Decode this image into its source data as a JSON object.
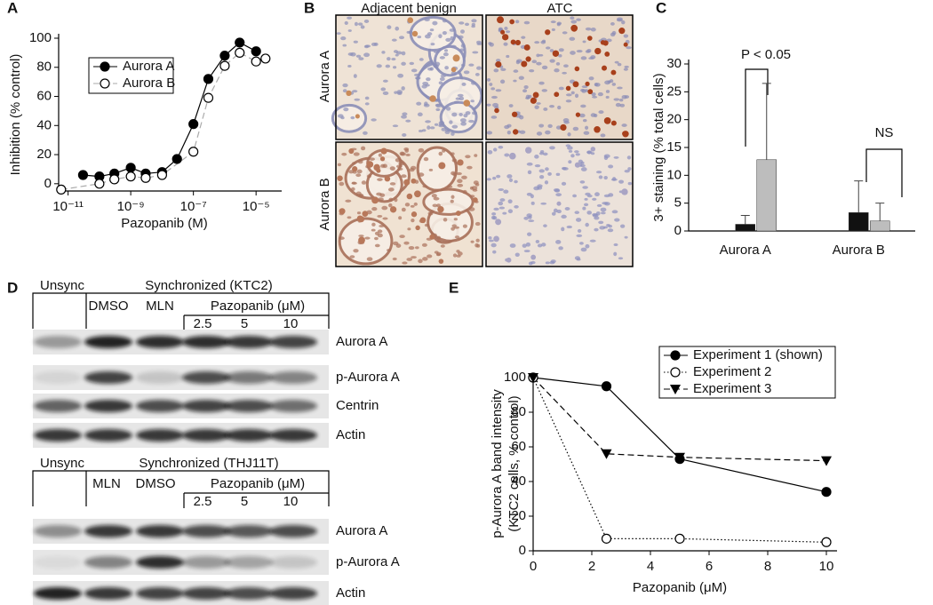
{
  "panel_labels": [
    "A",
    "B",
    "C",
    "D",
    "E"
  ],
  "chart_data": [
    {
      "type": "line",
      "xlabel": "Pazopanib (M)",
      "ylabel": [
        "Inhibition (% control)"
      ],
      "xscale": "log",
      "xlim": [
        5e-12,
        3e-05
      ],
      "xticks": [
        {
          "value": 1e-11,
          "label": "10⁻¹¹"
        },
        {
          "value": 1e-09,
          "label": "10⁻⁹"
        },
        {
          "value": 1e-07,
          "label": "10⁻⁷"
        },
        {
          "value": 1e-05,
          "label": "10⁻⁵"
        }
      ],
      "ylim": [
        -5,
        100
      ],
      "yticks": [
        0,
        20,
        40,
        60,
        80,
        100
      ],
      "legend": "upper left",
      "series": [
        {
          "name": "Aurora A",
          "color": "#000000",
          "marker": "circle-filled",
          "line_style": "solid",
          "x": [
            3e-11,
            1e-10,
            3e-10,
            1e-09,
            3e-09,
            1e-08,
            3e-08,
            1e-07,
            3e-07,
            1e-06,
            3e-06,
            1e-05
          ],
          "values": [
            6,
            5,
            7,
            11,
            7,
            8,
            17,
            41,
            72,
            88,
            97,
            91
          ]
        },
        {
          "name": "Aurora B",
          "color": "#aaaaaa",
          "marker": "circle-open",
          "line_style": "dashed",
          "x": [
            6e-12,
            1e-10,
            3e-10,
            1e-09,
            3e-09,
            1e-08,
            1e-07,
            3e-07,
            1e-06,
            3e-06,
            1e-05,
            2e-05
          ],
          "values": [
            -4,
            0,
            3,
            5,
            4,
            6,
            22,
            59,
            81,
            90,
            84,
            86
          ]
        }
      ]
    },
    {
      "type": "bar",
      "ylabel": [
        "3+ staining (% total cells)"
      ],
      "categories": [
        "Aurora A",
        "Aurora B"
      ],
      "ylim": [
        0,
        30
      ],
      "yticks": [
        0,
        5,
        10,
        15,
        20,
        25,
        30
      ],
      "annotations": [
        "P < 0.05",
        "NS"
      ],
      "series": [
        {
          "color": "#111111",
          "values": [
            1.2,
            3.3
          ],
          "errors": [
            1.6,
            5.7
          ]
        },
        {
          "color": "#bdbdbd",
          "values": [
            12.8,
            1.8
          ],
          "errors": [
            13.7,
            3.2
          ]
        }
      ]
    },
    {
      "type": "line",
      "xlabel": "Pazopanib (μM)",
      "ylabel": [
        "p-Aurora A band intensity",
        "(KTC2 cells, % control)"
      ],
      "xlim": [
        0,
        10
      ],
      "xticks": [
        0,
        2,
        4,
        6,
        8,
        10
      ],
      "ylim": [
        0,
        100
      ],
      "yticks": [
        0,
        20,
        40,
        60,
        80,
        100
      ],
      "legend": "upper right",
      "series": [
        {
          "name": "Experiment 1 (shown)",
          "color": "#000000",
          "marker": "circle-filled",
          "line_style": "solid",
          "x": [
            0,
            2.5,
            5,
            10
          ],
          "values": [
            100,
            95,
            53,
            34
          ]
        },
        {
          "name": "Experiment 2",
          "color": "#000000",
          "marker": "circle-open",
          "line_style": "dotted",
          "x": [
            0,
            2.5,
            5,
            10
          ],
          "values": [
            100,
            7,
            7,
            5
          ]
        },
        {
          "name": "Experiment 3",
          "color": "#000000",
          "marker": "triangle-filled",
          "line_style": "dashed",
          "x": [
            0,
            2.5,
            5,
            10
          ],
          "values": [
            100,
            56,
            54,
            52
          ]
        }
      ]
    }
  ],
  "histology": {
    "columns": [
      "Adjacent benign",
      "ATC"
    ],
    "rows": [
      "Aurora A",
      "Aurora B"
    ]
  },
  "blots": [
    {
      "unsync": "Unsync",
      "group": "Synchronized (KTC2)",
      "lanes": [
        "DMSO",
        "MLN"
      ],
      "drug": "Pazopanib (μM)",
      "doses": [
        2.5,
        5,
        10
      ],
      "rows": [
        "Aurora A",
        "p-Aurora A",
        "Centrin",
        "Actin"
      ]
    },
    {
      "unsync": "Unsync",
      "group": "Synchronized (THJ11T)",
      "lanes": [
        "MLN",
        "DMSO"
      ],
      "drug": "Pazopanib (μM)",
      "doses": [
        2.5,
        5,
        10
      ],
      "rows": [
        "Aurora A",
        "p-Aurora A",
        "Actin"
      ]
    }
  ]
}
